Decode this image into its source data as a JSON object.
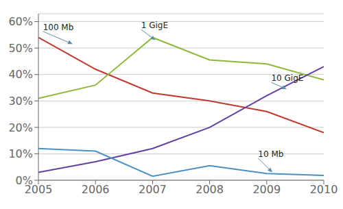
{
  "chart_data": {
    "type": "line",
    "x": [
      2005,
      2006,
      2007,
      2008,
      2009,
      2010
    ],
    "series": [
      {
        "name": "100 Mb",
        "color": "#c0392b",
        "values": [
          0.54,
          0.42,
          0.33,
          0.3,
          0.26,
          0.18
        ]
      },
      {
        "name": "1 GigE",
        "color": "#8db83a",
        "values": [
          0.31,
          0.36,
          0.54,
          0.455,
          0.44,
          0.38
        ]
      },
      {
        "name": "10 GigE",
        "color": "#6040a0",
        "values": [
          0.03,
          0.07,
          0.12,
          0.2,
          0.32,
          0.43
        ]
      },
      {
        "name": "10 Mb",
        "color": "#4a90c4",
        "values": [
          0.12,
          0.11,
          0.015,
          0.055,
          0.025,
          0.018
        ]
      }
    ],
    "annotations": [
      {
        "label": "100 Mb",
        "xy": [
          2005.6,
          0.515
        ],
        "xytext": [
          2005.08,
          0.563
        ]
      },
      {
        "label": "1 GigE",
        "xy": [
          2007.05,
          0.53
        ],
        "xytext": [
          2006.8,
          0.57
        ]
      },
      {
        "label": "10 GigE",
        "xy": [
          2009.35,
          0.345
        ],
        "xytext": [
          2009.08,
          0.37
        ]
      },
      {
        "label": "10 Mb",
        "xy": [
          2009.1,
          0.03
        ],
        "xytext": [
          2008.85,
          0.083
        ]
      }
    ],
    "xlim": [
      2005,
      2010
    ],
    "xticks": [
      2005,
      2006,
      2007,
      2008,
      2009,
      2010
    ],
    "ylim": [
      0,
      0.63
    ],
    "yticks": [
      {
        "value": 0.0,
        "label": "0%"
      },
      {
        "value": 0.1,
        "label": "10%"
      },
      {
        "value": 0.2,
        "label": "20%"
      },
      {
        "value": 0.3,
        "label": "30%"
      },
      {
        "value": 0.4,
        "label": "40%"
      },
      {
        "value": 0.5,
        "label": "50%"
      },
      {
        "value": 0.6,
        "label": "60%"
      }
    ],
    "grid": true
  }
}
